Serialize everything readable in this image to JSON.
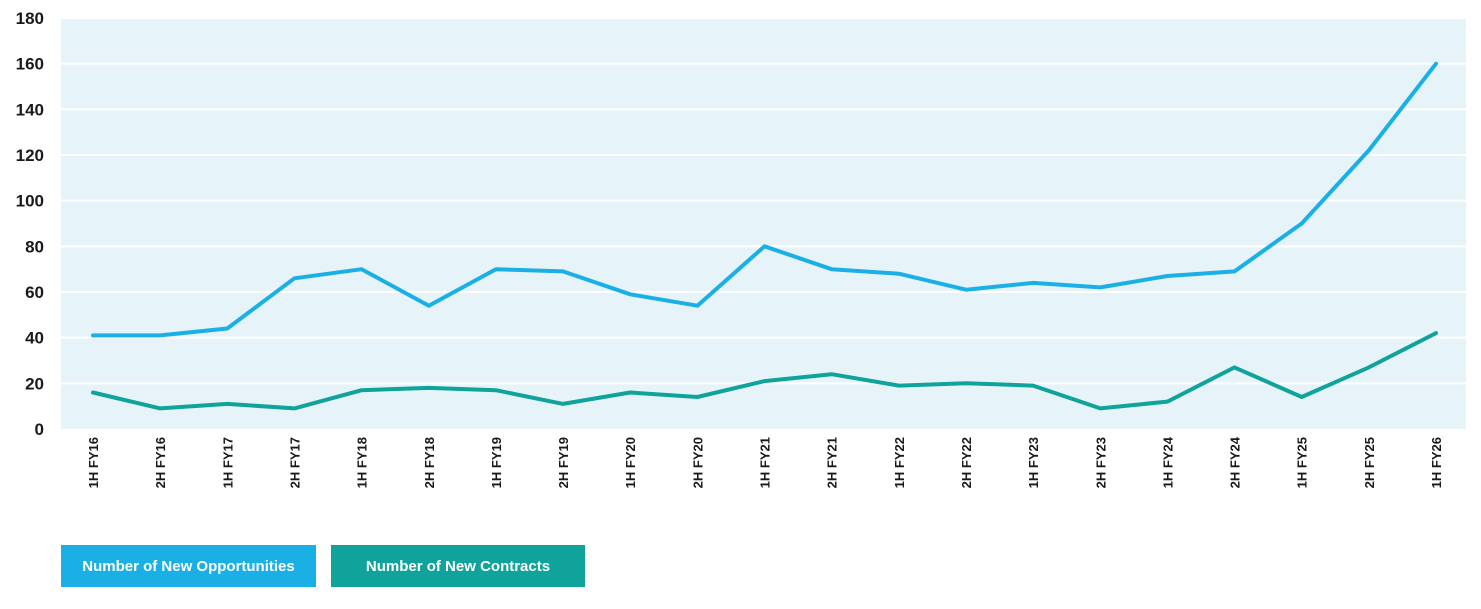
{
  "chart_data": {
    "type": "line",
    "categories": [
      "1H FY16",
      "2H FY16",
      "1H FY17",
      "2H FY17",
      "1H FY18",
      "2H FY18",
      "1H FY19",
      "2H FY19",
      "1H FY20",
      "2H FY20",
      "1H FY21",
      "2H FY21",
      "1H FY22",
      "2H FY22",
      "1H FY23",
      "2H FY23",
      "1H FY24",
      "2H FY24",
      "1H FY25",
      "2H FY25",
      "1H FY26"
    ],
    "series": [
      {
        "name": "Number of New Opportunities",
        "color": "#1ab0e6",
        "values": [
          41,
          41,
          44,
          66,
          70,
          54,
          70,
          69,
          59,
          54,
          80,
          70,
          68,
          61,
          64,
          62,
          67,
          69,
          90,
          122,
          160
        ]
      },
      {
        "name": "Number of New Contracts",
        "color": "#10a39b",
        "values": [
          16,
          9,
          11,
          9,
          17,
          18,
          17,
          11,
          16,
          14,
          21,
          24,
          19,
          20,
          19,
          9,
          12,
          27,
          14,
          27,
          42
        ]
      }
    ],
    "yticks": [
      "0",
      "20",
      "40",
      "60",
      "80",
      "100",
      "120",
      "140",
      "160",
      "180"
    ],
    "ylim": [
      0,
      180
    ],
    "grid": true,
    "plot_background": "#e6f4fa",
    "legend_position": "bottom-left"
  },
  "legend": {
    "opportunities_label": "Number of New Opportunities",
    "contracts_label": "Number of New Contracts"
  }
}
